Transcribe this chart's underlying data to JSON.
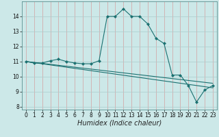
{
  "title": "",
  "xlabel": "Humidex (Indice chaleur)",
  "ylabel": "",
  "bg_color": "#cce8e8",
  "grid_color_x": "#d4a0a0",
  "grid_color_y": "#aacccc",
  "line_color": "#1a7070",
  "series": [
    {
      "x": [
        0,
        1,
        2,
        3,
        4,
        5,
        6,
        7,
        8,
        9,
        10,
        11,
        12,
        13,
        14,
        15,
        16,
        17,
        18,
        19,
        20,
        21,
        22,
        23
      ],
      "y": [
        11.0,
        10.9,
        10.9,
        11.05,
        11.15,
        11.0,
        10.9,
        10.85,
        10.85,
        11.05,
        14.0,
        14.0,
        14.5,
        14.0,
        14.0,
        13.5,
        12.55,
        12.2,
        10.1,
        10.1,
        9.4,
        8.3,
        9.1,
        9.4
      ],
      "marker": "D",
      "markersize": 2.2
    },
    {
      "x": [
        0,
        23
      ],
      "y": [
        11.0,
        9.55
      ],
      "marker": null
    },
    {
      "x": [
        0,
        23
      ],
      "y": [
        11.0,
        9.25
      ],
      "marker": null
    }
  ],
  "xlim": [
    -0.5,
    23.5
  ],
  "ylim": [
    7.8,
    15.0
  ],
  "yticks": [
    8,
    9,
    10,
    11,
    12,
    13,
    14
  ],
  "xticks": [
    0,
    1,
    2,
    3,
    4,
    5,
    6,
    7,
    8,
    9,
    10,
    11,
    12,
    13,
    14,
    15,
    16,
    17,
    18,
    19,
    20,
    21,
    22,
    23
  ],
  "tick_fontsize": 5.5,
  "label_fontsize": 7.0
}
